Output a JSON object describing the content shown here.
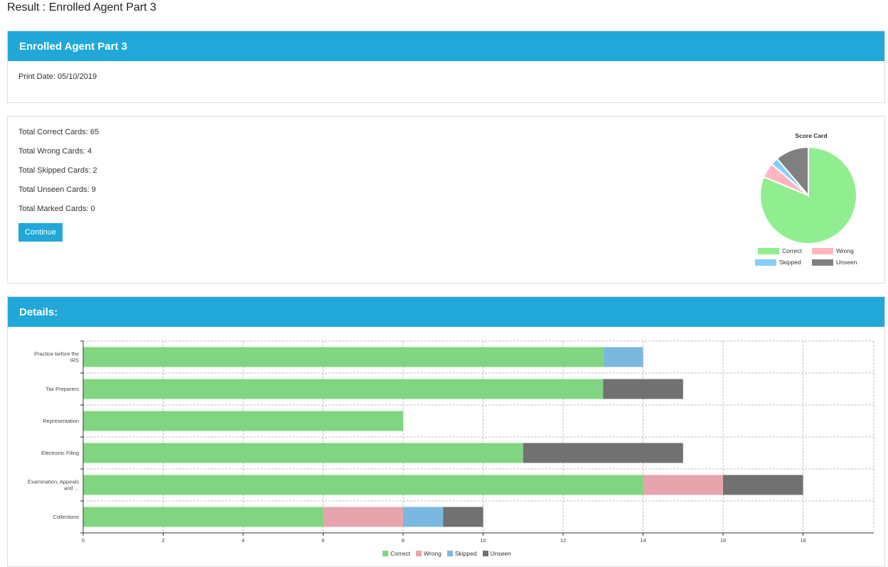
{
  "page": {
    "title": "Result : Enrolled Agent Part 3"
  },
  "header": {
    "title": "Enrolled Agent Part 3",
    "print_date": "Print Date: 05/10/2019"
  },
  "summary": {
    "stats": [
      "Total Correct Cards: 65",
      "Total Wrong Cards: 4",
      "Total Skipped Cards: 2",
      "Total Unseen Cards: 9",
      "Total Marked Cards: 0"
    ],
    "continue_label": "Continue"
  },
  "details": {
    "title": "Details:"
  },
  "colors": {
    "accent": "#21a8d8"
  },
  "chart_data": [
    {
      "type": "pie",
      "title": "Score Card",
      "labels": [
        "Correct",
        "Wrong",
        "Skipped",
        "Unseen"
      ],
      "values": [
        65,
        4,
        2,
        9
      ],
      "colors": [
        "#90ee90",
        "#ffb6c1",
        "#87cefa",
        "#808080"
      ],
      "legend": "bottom"
    },
    {
      "type": "bar",
      "orientation": "horizontal",
      "stacked": true,
      "categories": [
        "Practice before the IRS",
        "Tax Preparers",
        "Representation",
        "Electronic Filing",
        "Examination, Appeals and ...",
        "Collections"
      ],
      "category_labels": [
        [
          "Practice before the",
          "IRS"
        ],
        [
          "Tax Preparers"
        ],
        [
          "Representation"
        ],
        [
          "Electronic Filing"
        ],
        [
          "Examination, Appeals",
          "and ..."
        ],
        [
          "Collections"
        ]
      ],
      "series": [
        {
          "name": "Correct",
          "values": [
            13,
            13,
            8,
            11,
            14,
            6
          ],
          "color": "#80d680"
        },
        {
          "name": "Wrong",
          "values": [
            0,
            0,
            0,
            0,
            2,
            2
          ],
          "color": "#e6a4ad"
        },
        {
          "name": "Skipped",
          "values": [
            1,
            0,
            0,
            0,
            0,
            1
          ],
          "color": "#7bb8e0"
        },
        {
          "name": "Unseen",
          "values": [
            0,
            2,
            0,
            4,
            2,
            1
          ],
          "color": "#717171"
        }
      ],
      "xlim": [
        0,
        20
      ],
      "xticks": [
        0,
        2,
        4,
        6,
        8,
        10,
        12,
        14,
        16,
        18
      ],
      "grid": true,
      "legend": "bottom"
    }
  ]
}
